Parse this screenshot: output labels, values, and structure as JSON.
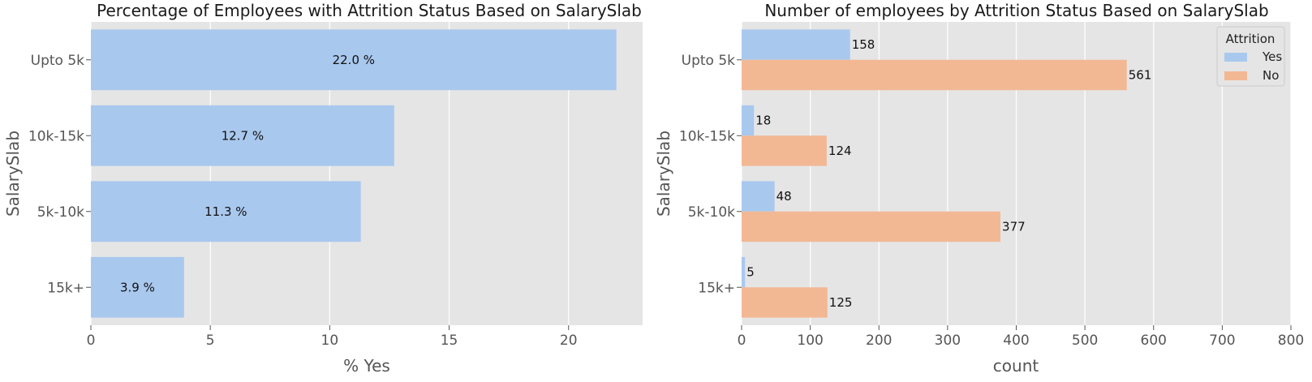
{
  "colors": {
    "panel_bg": "#e5e5e5",
    "grid": "#ffffff",
    "yes": "#a9c8ee",
    "no": "#f2b894"
  },
  "chart_data": [
    {
      "type": "bar",
      "orientation": "horizontal",
      "title": "Percentage of Employees with Attrition Status Based on SalarySlab",
      "xlabel": "% Yes",
      "ylabel": "SalarySlab",
      "categories": [
        "Upto 5k",
        "10k-15k",
        "5k-10k",
        "15k+"
      ],
      "values": [
        22.0,
        12.7,
        11.3,
        3.9
      ],
      "value_labels": [
        "22.0 %",
        "12.7 %",
        "11.3 %",
        "3.9 %"
      ],
      "xlim": [
        0,
        23.1
      ],
      "xticks": [
        0,
        5,
        10,
        15,
        20
      ],
      "grid": true
    },
    {
      "type": "bar",
      "orientation": "horizontal",
      "title": "Number of employees by Attrition Status Based on SalarySlab",
      "xlabel": "count",
      "ylabel": "SalarySlab",
      "categories": [
        "Upto 5k",
        "10k-15k",
        "5k-10k",
        "15k+"
      ],
      "series": [
        {
          "name": "Yes",
          "values": [
            158,
            18,
            48,
            5
          ]
        },
        {
          "name": "No",
          "values": [
            561,
            124,
            377,
            125
          ]
        }
      ],
      "legend": {
        "title": "Attrition",
        "position": "top-right"
      },
      "xlim": [
        0,
        800
      ],
      "xticks": [
        0,
        100,
        200,
        300,
        400,
        500,
        600,
        700,
        800
      ],
      "grid": true
    }
  ]
}
